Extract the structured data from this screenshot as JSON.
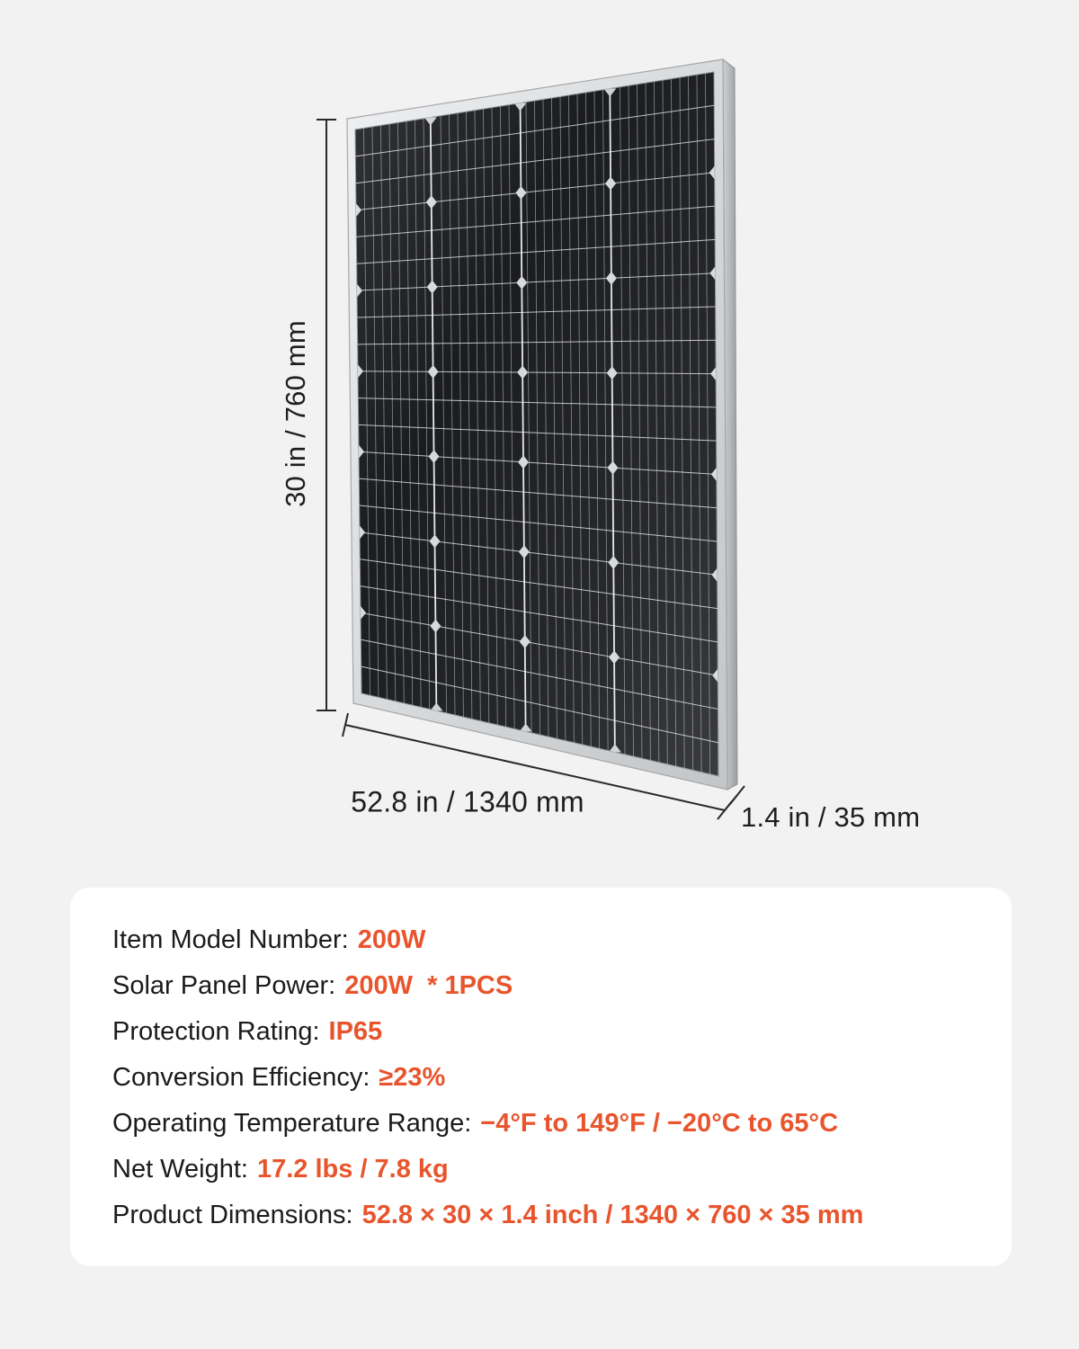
{
  "page": {
    "background": "#f2f2f3",
    "accent_color": "#e8552d"
  },
  "diagram": {
    "height_label": "30 in / 760 mm",
    "width_label": "52.8 in / 1340 mm",
    "depth_label": "1.4 in / 35 mm"
  },
  "specs": {
    "rows": [
      {
        "label": "Item Model Number:",
        "value": "200W"
      },
      {
        "label": "Solar Panel Power:",
        "value": "200W  * 1PCS"
      },
      {
        "label": "Protection Rating:",
        "value": "IP65"
      },
      {
        "label": "Conversion Efficiency:",
        "value": "≥23%"
      },
      {
        "label": "Operating Temperature Range:",
        "value": "−4°F to 149°F / −20°C to 65°C"
      },
      {
        "label": "Net Weight:",
        "value": "17.2 lbs / 7.8 kg"
      },
      {
        "label": "Product Dimensions:",
        "value": "52.8 × 30 × 1.4 inch / 1340 × 760 × 35 mm"
      }
    ]
  }
}
